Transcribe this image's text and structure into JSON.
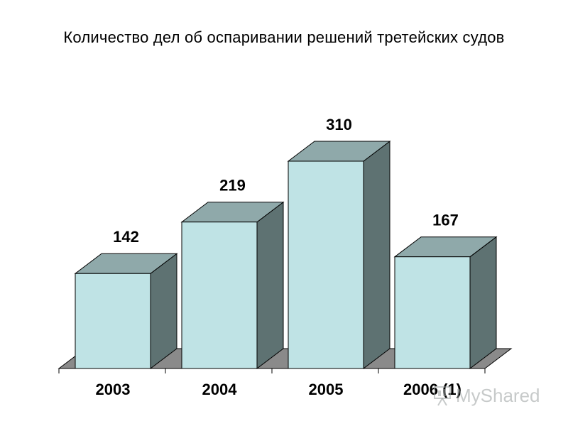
{
  "chart_data": {
    "type": "bar",
    "title": "Количество дел об оспаривании решений третейских судов",
    "categories": [
      "2003",
      "2004",
      "2005",
      "2006 (1)"
    ],
    "values": [
      142,
      219,
      310,
      167
    ],
    "xlabel": "",
    "ylabel": "",
    "ylim": [
      0,
      310
    ],
    "grid": false,
    "legend": "none",
    "three_d": true,
    "colors": {
      "bar_front": "#bfe3e5",
      "bar_top": "#8fa9aa",
      "bar_side": "#5e7272",
      "floor": "#8a8a8a",
      "outline": "#000000"
    }
  },
  "watermark": {
    "text": "MyShared",
    "icon": "presentation-icon"
  }
}
